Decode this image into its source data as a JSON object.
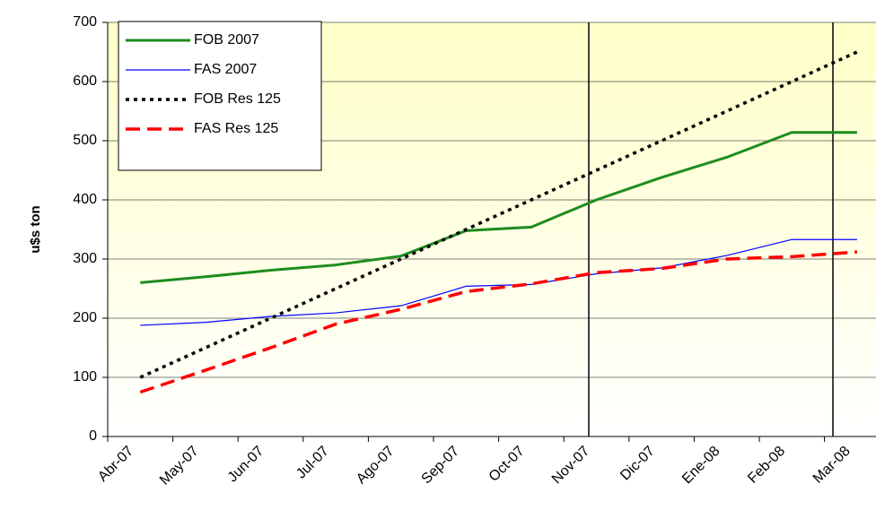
{
  "chart_data": {
    "type": "line",
    "y_label": "u$s ton",
    "categories": [
      "Abr-07",
      "May-07",
      "Jun-07",
      "Jul-07",
      "Ago-07",
      "Sep-07",
      "Oct-07",
      "Nov-07",
      "Dic-07",
      "Ene-08",
      "Feb-08",
      "Mar-08"
    ],
    "series": [
      {
        "name": "FOB 2007",
        "color": "#1e8c1e",
        "values": [
          260,
          270,
          281,
          290,
          305,
          348,
          354,
          400,
          438,
          472,
          514,
          514
        ]
      },
      {
        "name": "FAS 2007",
        "color": "#0000ff",
        "values": [
          188,
          193,
          203,
          209,
          221,
          254,
          257,
          275,
          285,
          306,
          333,
          333
        ]
      },
      {
        "name": "FOB Res 125",
        "color": "#000000",
        "values": [
          100,
          150,
          200,
          250,
          300,
          350,
          400,
          450,
          500,
          550,
          600,
          650
        ]
      },
      {
        "name": "FAS Res 125",
        "color": "#ff0000",
        "values": [
          75,
          112,
          150,
          190,
          215,
          245,
          258,
          277,
          284,
          300,
          304,
          312
        ]
      }
    ],
    "ylim": [
      0,
      700
    ],
    "yticks": [
      0,
      100,
      200,
      300,
      400,
      500,
      600,
      700
    ],
    "grid": true,
    "legend": "top-left"
  }
}
